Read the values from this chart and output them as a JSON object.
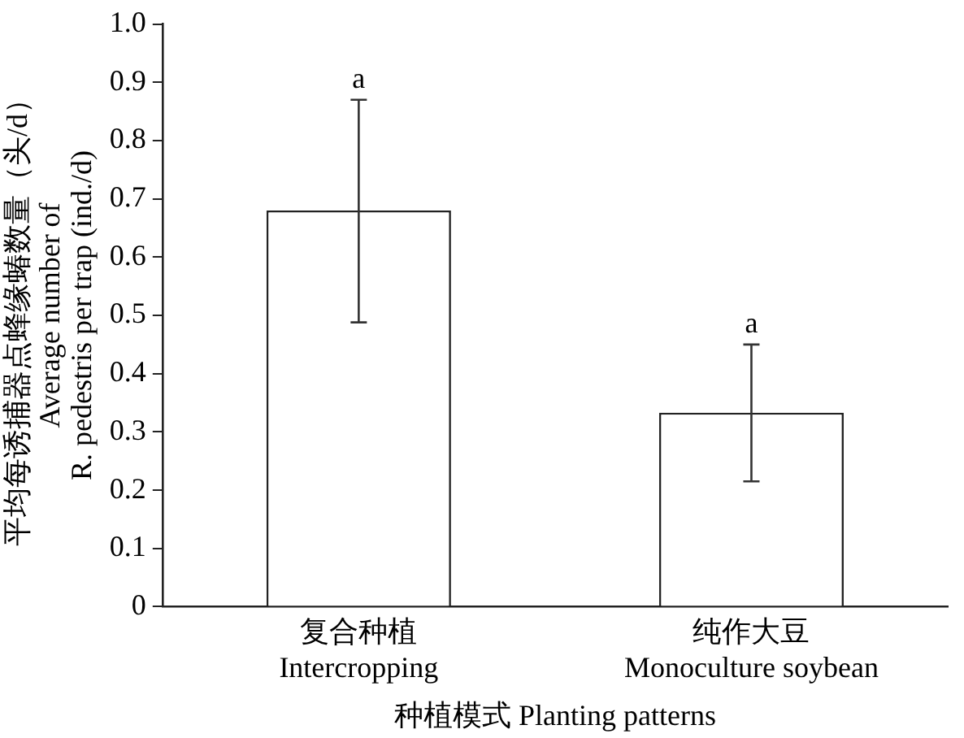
{
  "chart_data": {
    "type": "bar",
    "categories": [
      "复合种植\nIntercropping",
      "纯作大豆\nMonoculture soybean"
    ],
    "values": [
      0.68,
      0.333
    ],
    "errors": [
      [
        0.488,
        0.87
      ],
      [
        0.215,
        0.45
      ]
    ],
    "color": "#ffffff",
    "xlabel": "种植模式 Planting patterns",
    "ylabel": "平均每诱捕器点蜂缘蝽数量（头/d）\nAverage number of\nR. pedestris per trap (ind./d)",
    "ylim": [
      0,
      1
    ],
    "yticks": [
      0,
      0.1,
      0.2,
      0.3,
      0.4,
      0.5,
      0.6,
      0.7,
      0.8,
      0.9,
      {
        "value": 1,
        "label": "1.0"
      }
    ],
    "annotations": [
      {
        "text": "a",
        "x": "复合种植\nIntercropping",
        "y": 0.87
      },
      {
        "text": "a",
        "x": "纯作大豆\nMonoculture soybean",
        "y": 0.45
      }
    ],
    "grid": false,
    "legend": false
  }
}
